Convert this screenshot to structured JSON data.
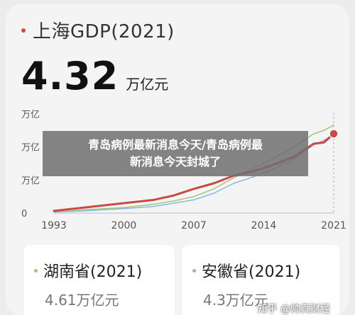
{
  "header": {
    "title": "上海GDP(2021)",
    "value": "4.32",
    "unit": "万亿元",
    "accent_color": "#d24a43"
  },
  "overlay_caption": {
    "line1": "青岛病例最新消息今天/青岛病例最",
    "line2": "新消息今天封城了"
  },
  "chart_data": {
    "type": "line",
    "x_ticks": [
      "1993",
      "2000",
      "2007",
      "2014",
      "2021"
    ],
    "y_ticks": [
      "0",
      "万亿",
      "万亿",
      "万亿"
    ],
    "series": [
      {
        "name": "",
        "color": "#c94a45",
        "x": [
          1993,
          1996,
          2000,
          2003,
          2005,
          2007,
          2009,
          2011,
          2013,
          2015,
          2017,
          2019,
          2020,
          2021
        ],
        "y": [
          0.02,
          0.05,
          0.09,
          0.12,
          0.16,
          0.22,
          0.27,
          0.34,
          0.38,
          0.44,
          0.51,
          0.63,
          0.64,
          0.72
        ]
      },
      {
        "name": "",
        "color": "#9cc77a",
        "x": [
          1993,
          1996,
          2000,
          2003,
          2005,
          2007,
          2009,
          2011,
          2013,
          2015,
          2017,
          2019,
          2020,
          2021
        ],
        "y": [
          0.01,
          0.03,
          0.05,
          0.08,
          0.11,
          0.15,
          0.22,
          0.32,
          0.41,
          0.5,
          0.6,
          0.72,
          0.75,
          0.8
        ]
      },
      {
        "name": "",
        "color": "#8ab7de",
        "x": [
          1993,
          1996,
          2000,
          2003,
          2005,
          2007,
          2009,
          2011,
          2013,
          2015,
          2017,
          2019,
          2020,
          2021
        ],
        "y": [
          0.01,
          0.02,
          0.04,
          0.06,
          0.09,
          0.12,
          0.18,
          0.27,
          0.33,
          0.4,
          0.49,
          0.62,
          0.66,
          0.71
        ]
      }
    ],
    "highlight_point": {
      "x": 2021,
      "y": 0.72
    },
    "grid": false
  },
  "cards": [
    {
      "title": "湖南省(2021)",
      "value": "4.61万亿元",
      "dot_color": "#9cc77a"
    },
    {
      "title": "安徽省(2021)",
      "value": "4.3万亿元",
      "dot_color": "#8ab7de"
    }
  ],
  "watermark": "知乎 @帅真财经"
}
